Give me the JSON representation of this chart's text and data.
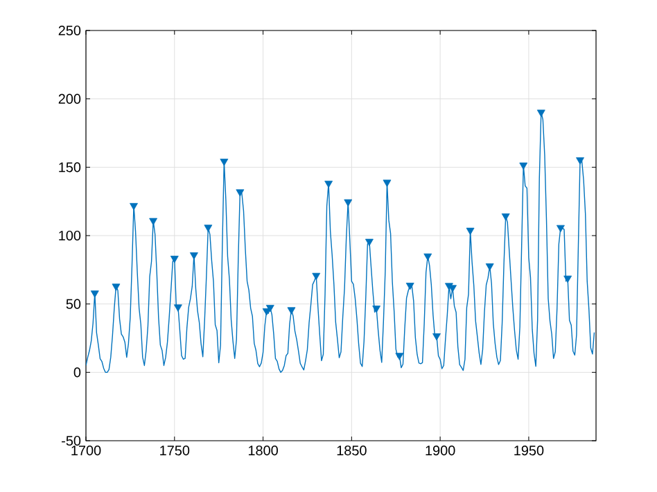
{
  "chart_data": {
    "type": "line",
    "xlim": [
      1700,
      1988
    ],
    "ylim": [
      -50,
      250
    ],
    "xticks": [
      1700,
      1750,
      1800,
      1850,
      1900,
      1950
    ],
    "yticks": [
      -50,
      0,
      50,
      100,
      150,
      200,
      250
    ],
    "grid": true,
    "series": [
      {
        "color": "#0072bd",
        "marker": "none",
        "x": [
          1700,
          1701,
          1702,
          1703,
          1704,
          1705,
          1706,
          1707,
          1708,
          1709,
          1710,
          1711,
          1712,
          1713,
          1714,
          1715,
          1716,
          1717,
          1718,
          1719,
          1720,
          1721,
          1722,
          1723,
          1724,
          1725,
          1726,
          1727,
          1728,
          1729,
          1730,
          1731,
          1732,
          1733,
          1734,
          1735,
          1736,
          1737,
          1738,
          1739,
          1740,
          1741,
          1742,
          1743,
          1744,
          1745,
          1746,
          1747,
          1748,
          1749,
          1750,
          1751,
          1752,
          1753,
          1754,
          1755,
          1756,
          1757,
          1758,
          1759,
          1760,
          1761,
          1762,
          1763,
          1764,
          1765,
          1766,
          1767,
          1768,
          1769,
          1770,
          1771,
          1772,
          1773,
          1774,
          1775,
          1776,
          1777,
          1778,
          1779,
          1780,
          1781,
          1782,
          1783,
          1784,
          1785,
          1786,
          1787,
          1788,
          1789,
          1790,
          1791,
          1792,
          1793,
          1794,
          1795,
          1796,
          1797,
          1798,
          1799,
          1800,
          1801,
          1802,
          1803,
          1804,
          1805,
          1806,
          1807,
          1808,
          1809,
          1810,
          1811,
          1812,
          1813,
          1814,
          1815,
          1816,
          1817,
          1818,
          1819,
          1820,
          1821,
          1822,
          1823,
          1824,
          1825,
          1826,
          1827,
          1828,
          1829,
          1830,
          1831,
          1832,
          1833,
          1834,
          1835,
          1836,
          1837,
          1838,
          1839,
          1840,
          1841,
          1842,
          1843,
          1844,
          1845,
          1846,
          1847,
          1848,
          1849,
          1850,
          1851,
          1852,
          1853,
          1854,
          1855,
          1856,
          1857,
          1858,
          1859,
          1860,
          1861,
          1862,
          1863,
          1864,
          1865,
          1866,
          1867,
          1868,
          1869,
          1870,
          1871,
          1872,
          1873,
          1874,
          1875,
          1876,
          1877,
          1878,
          1879,
          1880,
          1881,
          1882,
          1883,
          1884,
          1885,
          1886,
          1887,
          1888,
          1889,
          1890,
          1891,
          1892,
          1893,
          1894,
          1895,
          1896,
          1897,
          1898,
          1899,
          1900,
          1901,
          1902,
          1903,
          1904,
          1905,
          1906,
          1907,
          1908,
          1909,
          1910,
          1911,
          1912,
          1913,
          1914,
          1915,
          1916,
          1917,
          1918,
          1919,
          1920,
          1921,
          1922,
          1923,
          1924,
          1925,
          1926,
          1927,
          1928,
          1929,
          1930,
          1931,
          1932,
          1933,
          1934,
          1935,
          1936,
          1937,
          1938,
          1939,
          1940,
          1941,
          1942,
          1943,
          1944,
          1945,
          1946,
          1947,
          1948,
          1949,
          1950,
          1951,
          1952,
          1953,
          1954,
          1955,
          1956,
          1957,
          1958,
          1959,
          1960,
          1961,
          1962,
          1963,
          1964,
          1965,
          1966,
          1967,
          1968,
          1969,
          1970,
          1971,
          1972,
          1973,
          1974,
          1975,
          1976,
          1977,
          1978,
          1979,
          1980,
          1981,
          1982,
          1983,
          1984,
          1985,
          1986,
          1987
        ],
        "values": [
          5,
          11,
          16,
          23,
          36,
          58,
          29,
          20,
          10,
          8,
          3,
          0,
          0,
          2,
          11,
          27,
          47,
          63,
          60,
          39,
          28,
          26,
          22,
          11,
          21,
          40,
          78,
          122,
          103,
          73,
          47,
          35,
          11,
          5,
          16,
          34,
          70,
          81,
          111,
          101,
          73,
          40,
          20,
          16,
          5,
          11,
          22,
          40,
          60,
          80.9,
          83.4,
          47.7,
          47.8,
          30.7,
          12.2,
          9.6,
          10.2,
          32.4,
          47.6,
          54,
          62.9,
          85.9,
          61.2,
          45.1,
          36.4,
          20.9,
          11.4,
          37.8,
          69.8,
          106.1,
          100.8,
          81.6,
          66.5,
          34.8,
          30.6,
          7,
          19.8,
          92.5,
          154.4,
          125.9,
          84.8,
          68.1,
          38.5,
          22.8,
          10.2,
          24.1,
          82.9,
          132,
          130.9,
          118.1,
          89.9,
          66.6,
          60,
          46.9,
          41,
          21.3,
          16,
          6.4,
          4.1,
          6.8,
          14.5,
          34,
          45,
          43.1,
          47.5,
          42.2,
          28.1,
          10.1,
          8.1,
          2.5,
          0,
          1.4,
          5,
          12.2,
          13.9,
          35.4,
          45.8,
          41.1,
          30.1,
          23.9,
          15.6,
          6.6,
          4,
          1.8,
          8.5,
          16.6,
          36.3,
          49.6,
          64.2,
          67,
          70.9,
          47.8,
          27.5,
          8.5,
          13.2,
          56.9,
          121.5,
          138.3,
          103.2,
          85.7,
          64.6,
          36.7,
          24.2,
          10.7,
          15,
          40.1,
          61.5,
          98.5,
          124.7,
          96.3,
          66.6,
          64.5,
          54.1,
          39,
          20.6,
          6.7,
          4.3,
          22.7,
          54.8,
          93.8,
          95.8,
          77.2,
          59.1,
          44,
          47,
          30.5,
          16.3,
          7.3,
          37.6,
          74,
          139,
          111.2,
          101.6,
          66.2,
          44.7,
          17,
          11.3,
          12.4,
          3.4,
          6,
          32.3,
          54.3,
          59.7,
          63.7,
          63.5,
          52.2,
          25.4,
          13.1,
          6.8,
          6.3,
          7.1,
          35.6,
          73,
          85.1,
          78,
          64,
          41.8,
          26.2,
          26.7,
          12.1,
          9.5,
          2.7,
          5,
          24.4,
          42,
          63.5,
          53.8,
          62,
          48.5,
          43.9,
          18.6,
          5.7,
          3.6,
          1.4,
          9.6,
          47.4,
          57.1,
          103.9,
          80.6,
          63.6,
          37.6,
          26.1,
          14.2,
          5.8,
          16.7,
          44.3,
          63.9,
          69,
          77.8,
          64.9,
          35.7,
          21.2,
          11.1,
          5.7,
          8.7,
          36.1,
          79.7,
          114.4,
          109.6,
          88.8,
          67.8,
          47.5,
          30.6,
          16.3,
          9.6,
          33.2,
          92.6,
          151.6,
          136.3,
          134.7,
          83.9,
          69.4,
          31.5,
          13.9,
          4.4,
          38,
          141.7,
          190.2,
          184.8,
          159,
          112.3,
          53.9,
          37.5,
          27.9,
          10.2,
          15.1,
          47,
          93.8,
          105.9,
          105.5,
          104.5,
          66.6,
          68.9,
          38,
          34.5,
          15.5,
          12.6,
          27.5,
          92.5,
          155.4,
          154.6,
          140.4,
          115.9,
          66.6,
          45.9,
          17.9,
          13.4,
          29.2
        ]
      },
      {
        "type": "scatter",
        "color": "#0072bd",
        "marker": "triangle",
        "x": [
          1705,
          1717,
          1727,
          1738,
          1750,
          1752,
          1761,
          1769,
          1778,
          1787,
          1802,
          1804,
          1816,
          1830,
          1837,
          1848,
          1860,
          1864,
          1870,
          1877,
          1883,
          1893,
          1898,
          1905,
          1907,
          1917,
          1928,
          1937,
          1947,
          1957,
          1968,
          1972,
          1979
        ],
        "values": [
          58,
          63,
          122,
          111,
          83.4,
          47.8,
          85.9,
          106.1,
          154.4,
          132,
          45,
          47.5,
          45.8,
          70.9,
          138.3,
          124.7,
          95.8,
          47,
          139,
          12.4,
          63.7,
          85.1,
          26.7,
          63.5,
          62,
          103.9,
          77.8,
          114.4,
          151.6,
          190.2,
          105.9,
          68.9,
          155.4
        ]
      }
    ]
  }
}
